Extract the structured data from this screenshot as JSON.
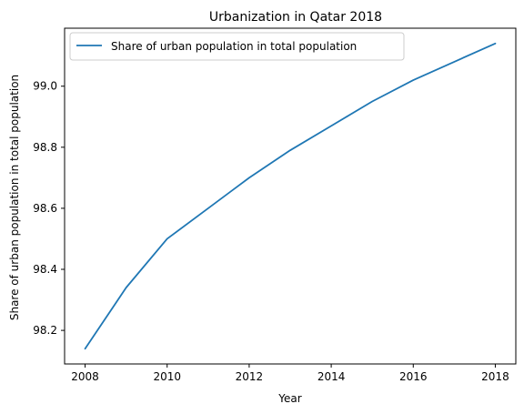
{
  "chart_data": {
    "type": "line",
    "title": "Urbanization in Qatar 2018",
    "xlabel": "Year",
    "ylabel": "Share of urban population in total population",
    "x": [
      2008,
      2009,
      2010,
      2011,
      2012,
      2013,
      2014,
      2015,
      2016,
      2017,
      2018
    ],
    "series": [
      {
        "name": "Share of urban population in total population",
        "values": [
          98.14,
          98.34,
          98.5,
          98.6,
          98.7,
          98.79,
          98.87,
          98.95,
          99.02,
          99.08,
          99.14
        ],
        "color": "#1f77b4"
      }
    ],
    "xlim": [
      2007.5,
      2018.5
    ],
    "ylim": [
      98.09,
      99.19
    ],
    "xticks": [
      "2008",
      "2010",
      "2012",
      "2014",
      "2016",
      "2018"
    ],
    "yticks": [
      "98.2",
      "98.4",
      "98.6",
      "98.8",
      "99.0"
    ],
    "grid": false,
    "legend_position": "top-left"
  }
}
